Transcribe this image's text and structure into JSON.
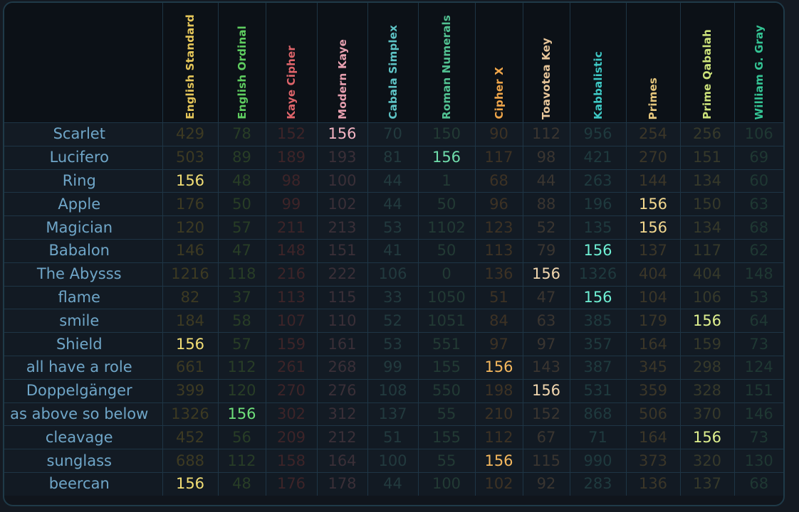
{
  "colors": {
    "hit_default": "#f0e070"
  },
  "ciphers": [
    {
      "name": "English Standard",
      "color": "#e6c75a",
      "dim": "#3d3a22"
    },
    {
      "name": "English Ordinal",
      "color": "#5fce60",
      "dim": "#283d26"
    },
    {
      "name": "Kaye Cipher",
      "color": "#e0656b",
      "dim": "#3d2428"
    },
    {
      "name": "Modern Kaye",
      "color": "#e8a0b0",
      "dim": "#3a2f37"
    },
    {
      "name": "Cabala Simplex",
      "color": "#5ec4c6",
      "dim": "#223a3e"
    },
    {
      "name": "Roman Numerals",
      "color": "#52c292",
      "dim": "#223a34"
    },
    {
      "name": "Cipher X",
      "color": "#f0a64a",
      "dim": "#3d3224"
    },
    {
      "name": "Toavotea Key",
      "color": "#e8c69a",
      "dim": "#3a3530"
    },
    {
      "name": "Kabbalistic",
      "color": "#3ec8c4",
      "dim": "#1f3a3e"
    },
    {
      "name": "Primes",
      "color": "#e5c67c",
      "dim": "#3b3628"
    },
    {
      "name": "Prime Qabalah",
      "color": "#cce27a",
      "dim": "#36392a"
    },
    {
      "name": "William G. Gray",
      "color": "#34c494",
      "dim": "#1f3833"
    }
  ],
  "hit_colors": [
    "#f2de74",
    "#6fe07a",
    "#f07b80",
    "#f3b4c2",
    "#7ad8da",
    "#6fdcab",
    "#f5b85e",
    "#f1d6ae",
    "#6ff0d4",
    "#f2d78e",
    "#dff08e",
    "#5fdcaa"
  ],
  "rows": [
    {
      "word": "Scarlet",
      "values": [
        "429",
        "78",
        "152",
        "156",
        "70",
        "150",
        "90",
        "112",
        "956",
        "254",
        "256",
        "106"
      ]
    },
    {
      "word": "Lucifero",
      "values": [
        "503",
        "89",
        "189",
        "193",
        "81",
        "156",
        "117",
        "98",
        "421",
        "270",
        "151",
        "69"
      ]
    },
    {
      "word": "Ring",
      "values": [
        "156",
        "48",
        "98",
        "100",
        "44",
        "1",
        "68",
        "44",
        "263",
        "144",
        "134",
        "60"
      ]
    },
    {
      "word": "Apple",
      "values": [
        "176",
        "50",
        "99",
        "102",
        "44",
        "50",
        "96",
        "88",
        "196",
        "156",
        "150",
        "63"
      ]
    },
    {
      "word": "Magician",
      "values": [
        "120",
        "57",
        "211",
        "213",
        "53",
        "1102",
        "123",
        "52",
        "135",
        "156",
        "134",
        "68"
      ]
    },
    {
      "word": "Babalon",
      "values": [
        "146",
        "47",
        "148",
        "151",
        "41",
        "50",
        "113",
        "79",
        "156",
        "137",
        "117",
        "62"
      ]
    },
    {
      "word": "The Abysss",
      "values": [
        "1216",
        "118",
        "216",
        "222",
        "106",
        "0",
        "136",
        "156",
        "1326",
        "404",
        "404",
        "148"
      ]
    },
    {
      "word": "flame",
      "values": [
        "82",
        "37",
        "113",
        "115",
        "33",
        "1050",
        "51",
        "47",
        "156",
        "104",
        "106",
        "53"
      ]
    },
    {
      "word": "smile",
      "values": [
        "184",
        "58",
        "107",
        "110",
        "52",
        "1051",
        "84",
        "63",
        "385",
        "179",
        "156",
        "64"
      ]
    },
    {
      "word": "Shield",
      "values": [
        "156",
        "57",
        "159",
        "161",
        "53",
        "551",
        "97",
        "97",
        "357",
        "164",
        "159",
        "73"
      ]
    },
    {
      "word": "all have a role",
      "values": [
        "661",
        "112",
        "261",
        "268",
        "99",
        "155",
        "156",
        "143",
        "387",
        "345",
        "298",
        "124"
      ]
    },
    {
      "word": "Doppelgänger",
      "values": [
        "399",
        "120",
        "270",
        "276",
        "108",
        "550",
        "198",
        "156",
        "531",
        "359",
        "328",
        "151"
      ]
    },
    {
      "word": "as above so below",
      "values": [
        "1326",
        "156",
        "302",
        "312",
        "137",
        "55",
        "210",
        "152",
        "868",
        "506",
        "370",
        "146"
      ]
    },
    {
      "word": "cleavage",
      "values": [
        "452",
        "56",
        "209",
        "212",
        "51",
        "155",
        "112",
        "67",
        "71",
        "164",
        "156",
        "73"
      ]
    },
    {
      "word": "sunglass",
      "values": [
        "688",
        "112",
        "158",
        "164",
        "100",
        "55",
        "156",
        "115",
        "990",
        "373",
        "320",
        "130"
      ]
    },
    {
      "word": "beercan",
      "values": [
        "156",
        "48",
        "176",
        "178",
        "44",
        "100",
        "102",
        "92",
        "283",
        "136",
        "137",
        "68"
      ]
    }
  ],
  "highlight_value": "156"
}
